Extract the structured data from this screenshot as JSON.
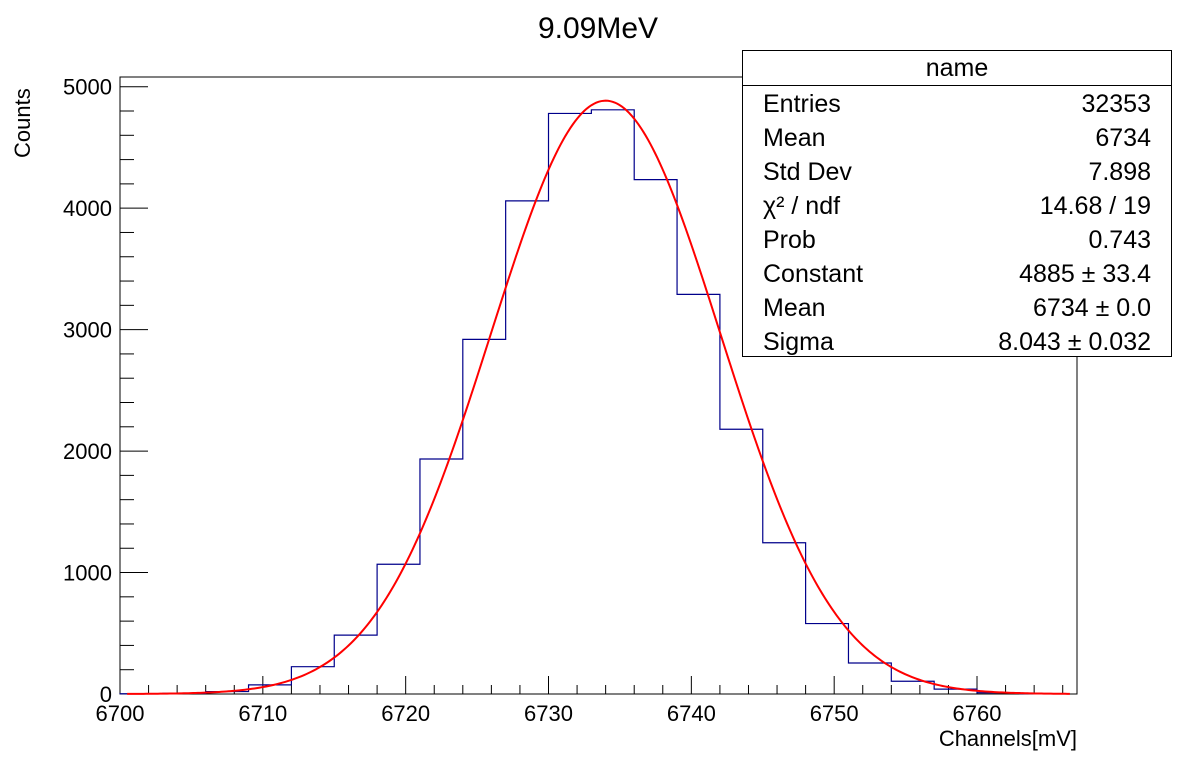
{
  "chart_data": {
    "type": "bar",
    "title": "9.09MeV",
    "xlabel": "Channels[mV]",
    "ylabel": "Counts",
    "xlim": [
      6700,
      6767
    ],
    "ylim": [
      0,
      5080
    ],
    "x_ticks": [
      6700,
      6710,
      6720,
      6730,
      6740,
      6750,
      6760
    ],
    "y_ticks": [
      0,
      1000,
      2000,
      3000,
      4000,
      5000
    ],
    "grid": false,
    "histogram": {
      "bin_width": 3.0,
      "bin_edges": [
        6700,
        6703,
        6706,
        6709,
        6712,
        6715,
        6718,
        6721,
        6724,
        6727,
        6730,
        6733,
        6736,
        6739,
        6742,
        6745,
        6748,
        6751,
        6754,
        6757,
        6760,
        6763,
        6766
      ],
      "counts": [
        2,
        5,
        20,
        75,
        225,
        485,
        1068,
        1935,
        2920,
        4060,
        4780,
        4810,
        4235,
        3290,
        2180,
        1245,
        580,
        255,
        105,
        40,
        10,
        3
      ],
      "color": "#00008b"
    },
    "fit": {
      "function": "gaus",
      "constant": 4885,
      "mean": 6734,
      "sigma": 8.043,
      "color": "#ff0000"
    }
  },
  "stats_box": {
    "title": "name",
    "rows": [
      {
        "label": "Entries",
        "value": "32353"
      },
      {
        "label": "Mean",
        "value": "6734"
      },
      {
        "label": "Std Dev",
        "value": "7.898"
      },
      {
        "label": "χ² / ndf",
        "value": "14.68 / 19"
      },
      {
        "label": "Prob",
        "value": "0.743"
      },
      {
        "label": "Constant",
        "value": "4885 ± 33.4"
      },
      {
        "label": "Mean",
        "value": "6734 ± 0.0"
      },
      {
        "label": "Sigma",
        "value": "8.043 ± 0.032"
      }
    ]
  }
}
